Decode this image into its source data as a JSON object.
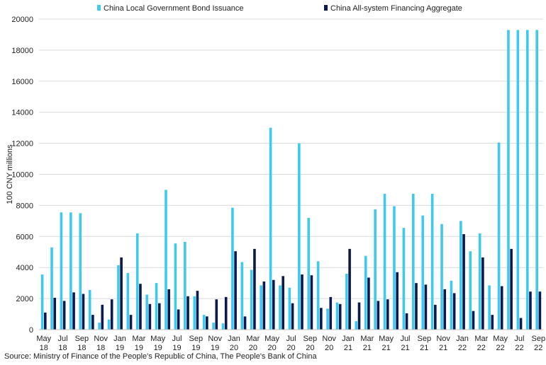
{
  "chart_data": {
    "type": "bar",
    "ylabel": "100 CNY millions",
    "ylim": [
      0,
      20000
    ],
    "yticks": [
      0,
      2000,
      4000,
      6000,
      8000,
      10000,
      12000,
      14000,
      16000,
      18000,
      20000
    ],
    "grid": true,
    "legend_position": "top",
    "colors": {
      "local_bond": "#3ec9ef",
      "afa": "#0b1a4d",
      "grid": "#d9d9d9",
      "axis": "#bfbfbf"
    },
    "categories": [
      "May 18",
      "Jun 18",
      "Jul 18",
      "Aug 18",
      "Sep 18",
      "Oct 18",
      "Nov 18",
      "Dec 18",
      "Jan 19",
      "Feb 19",
      "Mar 19",
      "Apr 19",
      "May 19",
      "Jun 19",
      "Jul 19",
      "Aug 19",
      "Sep 19",
      "Oct 19",
      "Nov 19",
      "Dec 19",
      "Jan 20",
      "Feb 20",
      "Mar 20",
      "Apr 20",
      "May 20",
      "Jun 20",
      "Jul 20",
      "Aug 20",
      "Sep 20",
      "Oct 20",
      "Nov 20",
      "Dec 20",
      "Jan 21",
      "Feb 21",
      "Mar 21",
      "Apr 21",
      "May 21",
      "Jun 21",
      "Jul 21",
      "Aug 21",
      "Sep 21",
      "Oct 21",
      "Nov 21",
      "Dec 21",
      "Jan 22",
      "Feb 22",
      "Mar 22",
      "Apr 22",
      "May 22",
      "Jun 22",
      "Jul 22",
      "Aug 22",
      "Sep 22"
    ],
    "x_tick_labels": [
      {
        "index": 0,
        "month": "May",
        "year": "18"
      },
      {
        "index": 2,
        "month": "Jul",
        "year": "18"
      },
      {
        "index": 4,
        "month": "Sep",
        "year": "18"
      },
      {
        "index": 6,
        "month": "Nov",
        "year": "18"
      },
      {
        "index": 8,
        "month": "Jan",
        "year": "19"
      },
      {
        "index": 10,
        "month": "Mar",
        "year": "19"
      },
      {
        "index": 12,
        "month": "May",
        "year": "19"
      },
      {
        "index": 14,
        "month": "Jul",
        "year": "19"
      },
      {
        "index": 16,
        "month": "Sep",
        "year": "19"
      },
      {
        "index": 18,
        "month": "Nov",
        "year": "19"
      },
      {
        "index": 20,
        "month": "Jan",
        "year": "20"
      },
      {
        "index": 22,
        "month": "Mar",
        "year": "20"
      },
      {
        "index": 24,
        "month": "May",
        "year": "20"
      },
      {
        "index": 26,
        "month": "Jul",
        "year": "20"
      },
      {
        "index": 28,
        "month": "Sep",
        "year": "20"
      },
      {
        "index": 30,
        "month": "Nov",
        "year": "20"
      },
      {
        "index": 32,
        "month": "Jan",
        "year": "21"
      },
      {
        "index": 34,
        "month": "Mar",
        "year": "21"
      },
      {
        "index": 36,
        "month": "May",
        "year": "21"
      },
      {
        "index": 38,
        "month": "Jul",
        "year": "21"
      },
      {
        "index": 40,
        "month": "Sep",
        "year": "21"
      },
      {
        "index": 42,
        "month": "Nov",
        "year": "21"
      },
      {
        "index": 44,
        "month": "Jan",
        "year": "22"
      },
      {
        "index": 46,
        "month": "Mar",
        "year": "22"
      },
      {
        "index": 48,
        "month": "May",
        "year": "22"
      },
      {
        "index": 50,
        "month": "Jul",
        "year": "22"
      },
      {
        "index": 52,
        "month": "Sep",
        "year": "22"
      }
    ],
    "series": [
      {
        "name": "China Local Government Bond Issuance",
        "color_key": "local_bond",
        "values": [
          3550,
          5300,
          7550,
          7550,
          7500,
          2550,
          450,
          650,
          4150,
          3650,
          6200,
          2250,
          3000,
          9000,
          5550,
          5650,
          2150,
          950,
          450,
          400,
          7850,
          4350,
          3850,
          2850,
          13000,
          2850,
          2700,
          12000,
          7200,
          4400,
          1350,
          1750,
          3600,
          550,
          4750,
          7750,
          8750,
          7950,
          6550,
          8750,
          7350,
          8750,
          6800,
          3150,
          7000,
          5050,
          6200,
          2850,
          12050,
          19300,
          19300,
          19300,
          19300
        ]
      },
      {
        "name": "China All-system Financing Aggregate",
        "color_key": "afa",
        "values": [
          1100,
          2050,
          1850,
          2400,
          2300,
          950,
          1600,
          1950,
          4650,
          950,
          2950,
          1650,
          1700,
          2600,
          1300,
          2150,
          2500,
          850,
          1950,
          2100,
          5050,
          850,
          5200,
          3100,
          3200,
          3450,
          1700,
          3550,
          3500,
          1400,
          2100,
          1650,
          5200,
          1750,
          3350,
          1850,
          1950,
          3700,
          1050,
          3000,
          2900,
          1600,
          2600,
          2350,
          6150,
          1200,
          4650,
          950,
          2800,
          5200,
          750,
          2450,
          2450
        ]
      }
    ],
    "source": "Source: Ministry of Finance of the People's Republic of China, The People's Bank of China"
  }
}
